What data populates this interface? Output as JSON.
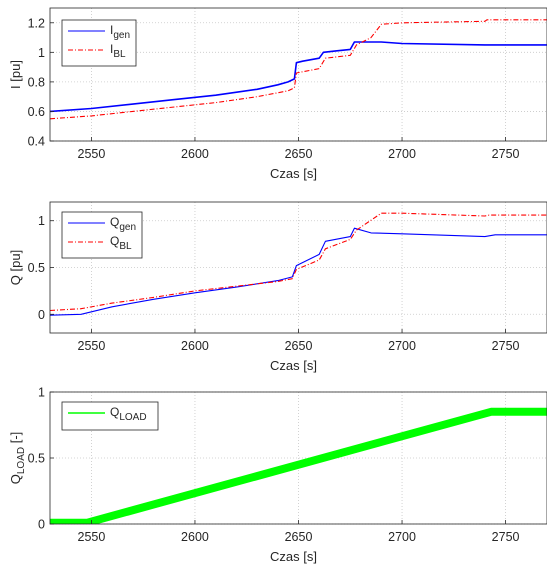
{
  "chart_data": [
    {
      "type": "line",
      "xlabel": "Czas [s]",
      "ylabel": "I [pu]",
      "xlim": [
        2530,
        2770
      ],
      "ylim": [
        0.4,
        1.3
      ],
      "xticks": [
        2550,
        2600,
        2650,
        2700,
        2750
      ],
      "yticks": [
        0.4,
        0.6,
        0.8,
        1,
        1.2
      ],
      "grid": true,
      "legend_position": "top-left",
      "series": [
        {
          "name": "I_gen",
          "legend_base": "I",
          "legend_sub": "gen",
          "color": "#0000ff",
          "dash": "solid",
          "x": [
            2530,
            2550,
            2570,
            2590,
            2610,
            2630,
            2640,
            2645,
            2648,
            2649,
            2652,
            2660,
            2662,
            2668,
            2675,
            2677,
            2690,
            2700,
            2740,
            2770
          ],
          "y": [
            0.6,
            0.62,
            0.65,
            0.68,
            0.71,
            0.75,
            0.78,
            0.8,
            0.82,
            0.93,
            0.94,
            0.96,
            1.0,
            1.01,
            1.02,
            1.07,
            1.07,
            1.06,
            1.05,
            1.05
          ]
        },
        {
          "name": "I_BL",
          "legend_base": "I",
          "legend_sub": "BL",
          "color": "#ff0000",
          "dash": "dashdot",
          "x": [
            2530,
            2550,
            2570,
            2590,
            2610,
            2630,
            2645,
            2648,
            2649,
            2660,
            2663,
            2675,
            2678,
            2685,
            2690,
            2700,
            2740,
            2741,
            2770
          ],
          "y": [
            0.55,
            0.57,
            0.6,
            0.63,
            0.66,
            0.7,
            0.74,
            0.76,
            0.86,
            0.89,
            0.96,
            0.98,
            1.05,
            1.1,
            1.19,
            1.2,
            1.21,
            1.22,
            1.22
          ]
        }
      ]
    },
    {
      "type": "line",
      "xlabel": "Czas [s]",
      "ylabel": "Q [pu]",
      "xlim": [
        2530,
        2770
      ],
      "ylim": [
        -0.2,
        1.2
      ],
      "xticks": [
        2550,
        2600,
        2650,
        2700,
        2750
      ],
      "yticks": [
        0,
        0.5,
        1
      ],
      "grid": true,
      "legend_position": "top-left",
      "series": [
        {
          "name": "Q_gen",
          "legend_base": "Q",
          "legend_sub": "gen",
          "color": "#0000ff",
          "dash": "solid",
          "x": [
            2530,
            2545,
            2560,
            2580,
            2600,
            2620,
            2640,
            2647,
            2649,
            2660,
            2663,
            2675,
            2677,
            2685,
            2700,
            2740,
            2745,
            2770
          ],
          "y": [
            -0.01,
            0.0,
            0.08,
            0.16,
            0.23,
            0.29,
            0.36,
            0.4,
            0.52,
            0.64,
            0.78,
            0.83,
            0.92,
            0.87,
            0.86,
            0.83,
            0.85,
            0.85
          ]
        },
        {
          "name": "Q_BL",
          "legend_base": "Q",
          "legend_sub": "BL",
          "color": "#ff0000",
          "dash": "dashdot",
          "x": [
            2530,
            2545,
            2560,
            2580,
            2600,
            2620,
            2640,
            2647,
            2649,
            2660,
            2663,
            2675,
            2678,
            2690,
            2700,
            2740,
            2742,
            2770
          ],
          "y": [
            0.04,
            0.06,
            0.12,
            0.18,
            0.25,
            0.3,
            0.35,
            0.38,
            0.48,
            0.58,
            0.7,
            0.8,
            0.9,
            1.08,
            1.08,
            1.05,
            1.06,
            1.06
          ]
        }
      ]
    },
    {
      "type": "line",
      "xlabel": "Czas [s]",
      "ylabel": "Q_LOAD [-]",
      "ylabel_base": "Q",
      "ylabel_sub": "LOAD",
      "ylabel_tail": " [-]",
      "xlim": [
        2530,
        2770
      ],
      "ylim": [
        0,
        1
      ],
      "xticks": [
        2550,
        2600,
        2650,
        2700,
        2750
      ],
      "yticks": [
        0,
        0.5,
        1
      ],
      "grid": true,
      "legend_position": "top-left",
      "series": [
        {
          "name": "Q_LOAD",
          "legend_base": "Q",
          "legend_sub": "LOAD",
          "color": "#00ff00",
          "dash": "solid",
          "x": [
            2530,
            2548,
            2743,
            2770
          ],
          "y": [
            0.01,
            0.01,
            0.85,
            0.85
          ]
        }
      ]
    }
  ]
}
